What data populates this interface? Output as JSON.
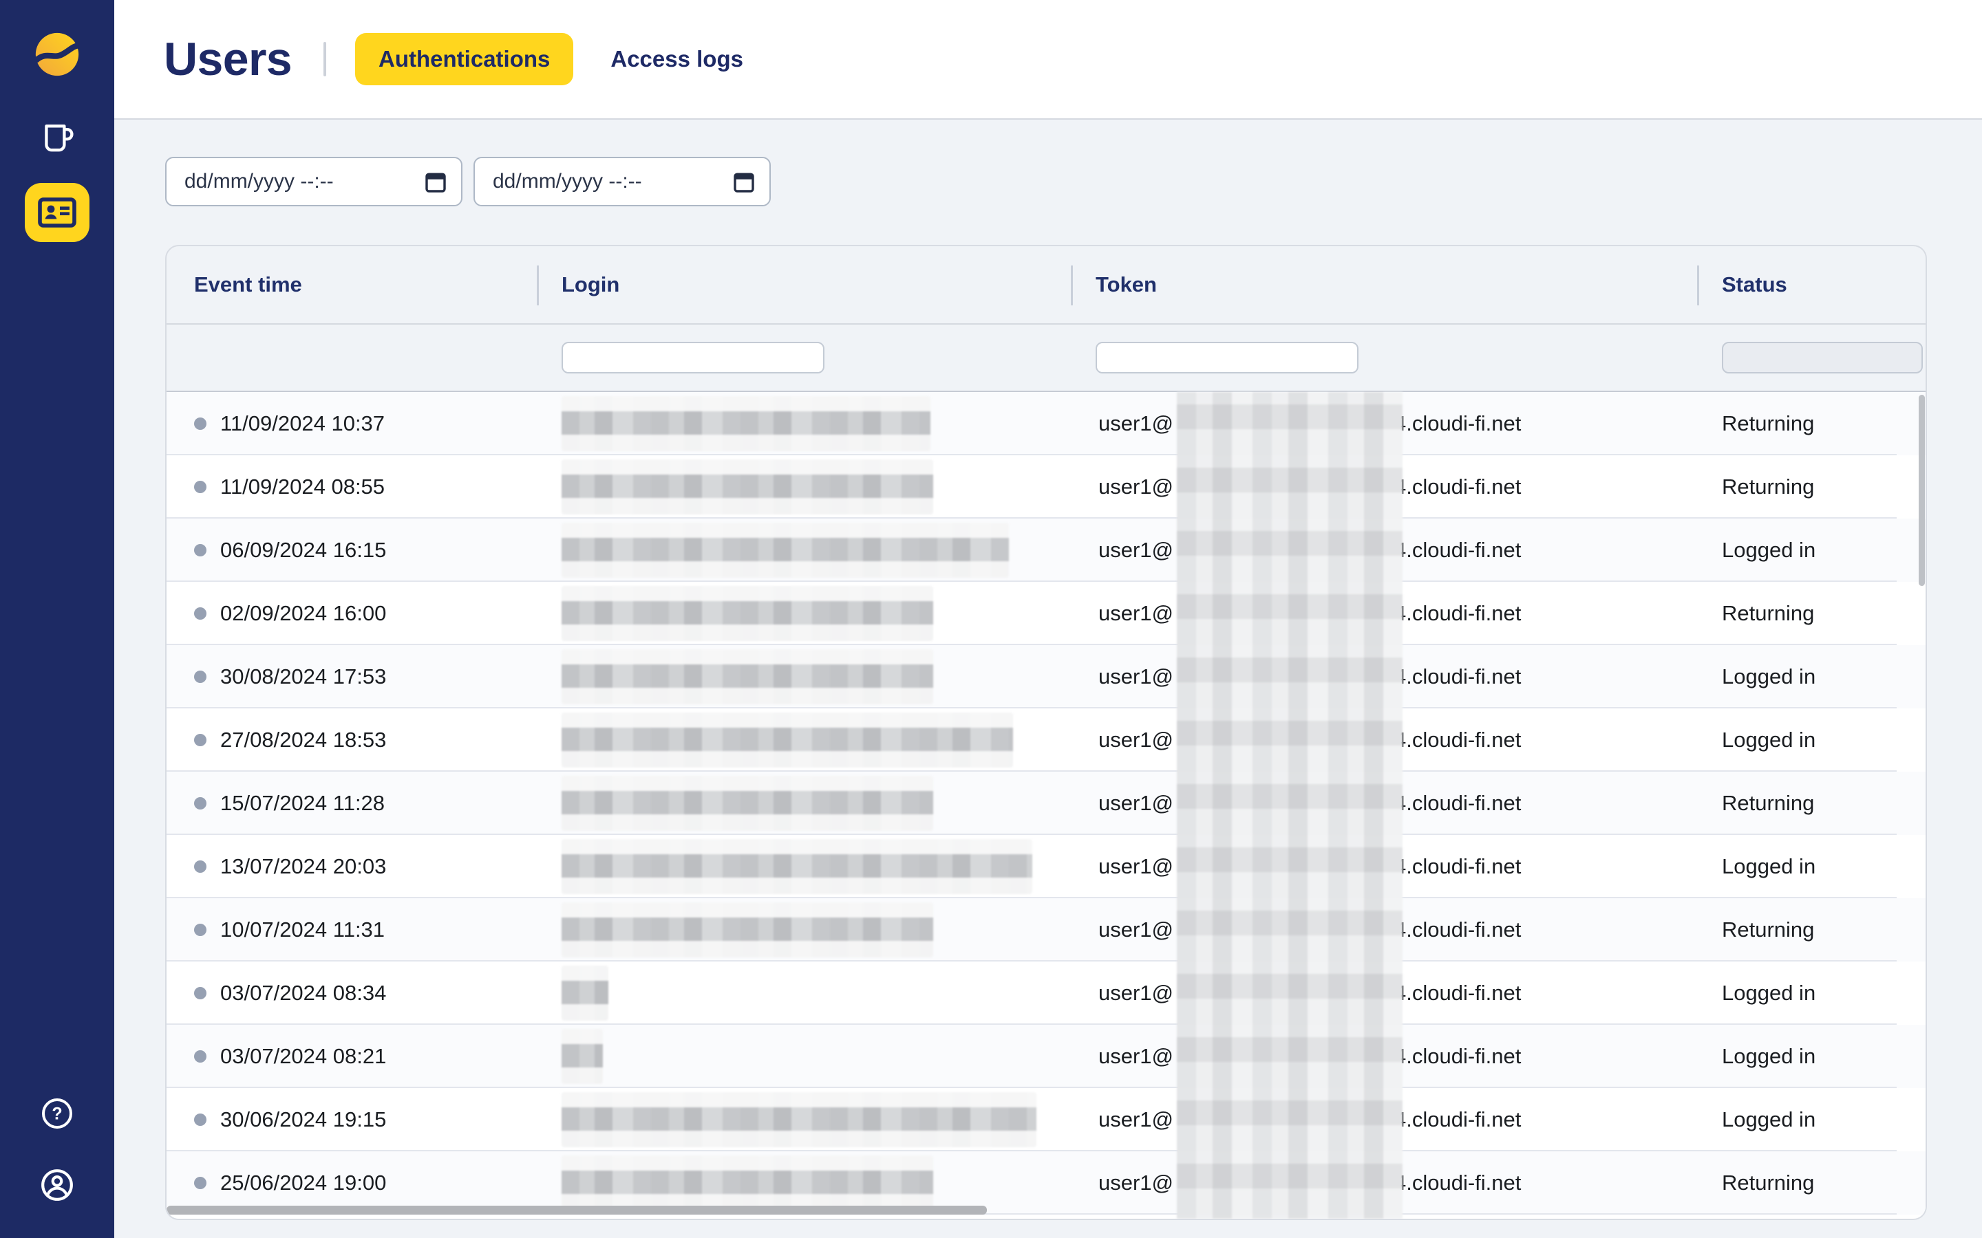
{
  "colors": {
    "navy": "#1d2a64",
    "yellow": "#ffd51e",
    "page_bg": "#f0f3f7",
    "title_navy": "#1e2a66"
  },
  "sidebar": {
    "icons": [
      {
        "name": "brand-logo"
      },
      {
        "name": "mug-icon"
      },
      {
        "name": "id-card-icon",
        "active": true
      },
      {
        "name": "help-icon"
      },
      {
        "name": "account-icon"
      }
    ]
  },
  "header": {
    "title": "Users",
    "tabs": [
      {
        "label": "Authentications",
        "active": true
      },
      {
        "label": "Access logs",
        "active": false
      }
    ]
  },
  "filters": {
    "date_from": {
      "value": "",
      "placeholder": "dd/mm/yyyy --:--"
    },
    "date_to": {
      "value": "",
      "placeholder": "dd/mm/yyyy --:--"
    },
    "login_filter": {
      "value": "",
      "placeholder": ""
    },
    "token_filter": {
      "value": "",
      "placeholder": ""
    }
  },
  "table": {
    "columns": [
      "Event time",
      "Login",
      "Token",
      "Status"
    ],
    "token": {
      "prefix": "user1@",
      "suffix": "4.cloudi-fi.net"
    },
    "rows": [
      {
        "event_time": "11/09/2024 10:37",
        "status": "Returning",
        "login_w": 268
      },
      {
        "event_time": "11/09/2024 08:55",
        "status": "Returning",
        "login_w": 270
      },
      {
        "event_time": "06/09/2024 16:15",
        "status": "Logged in",
        "login_w": 325
      },
      {
        "event_time": "02/09/2024 16:00",
        "status": "Returning",
        "login_w": 270
      },
      {
        "event_time": "30/08/2024 17:53",
        "status": "Logged in",
        "login_w": 270
      },
      {
        "event_time": "27/08/2024 18:53",
        "status": "Logged in",
        "login_w": 328
      },
      {
        "event_time": "15/07/2024 11:28",
        "status": "Returning",
        "login_w": 270
      },
      {
        "event_time": "13/07/2024 20:03",
        "status": "Logged in",
        "login_w": 342
      },
      {
        "event_time": "10/07/2024 11:31",
        "status": "Returning",
        "login_w": 270
      },
      {
        "event_time": "03/07/2024 08:34",
        "status": "Logged in",
        "login_w": 34
      },
      {
        "event_time": "03/07/2024 08:21",
        "status": "Logged in",
        "login_w": 30
      },
      {
        "event_time": "30/06/2024 19:15",
        "status": "Logged in",
        "login_w": 345
      },
      {
        "event_time": "25/06/2024 19:00",
        "status": "Returning",
        "login_w": 270
      }
    ]
  }
}
